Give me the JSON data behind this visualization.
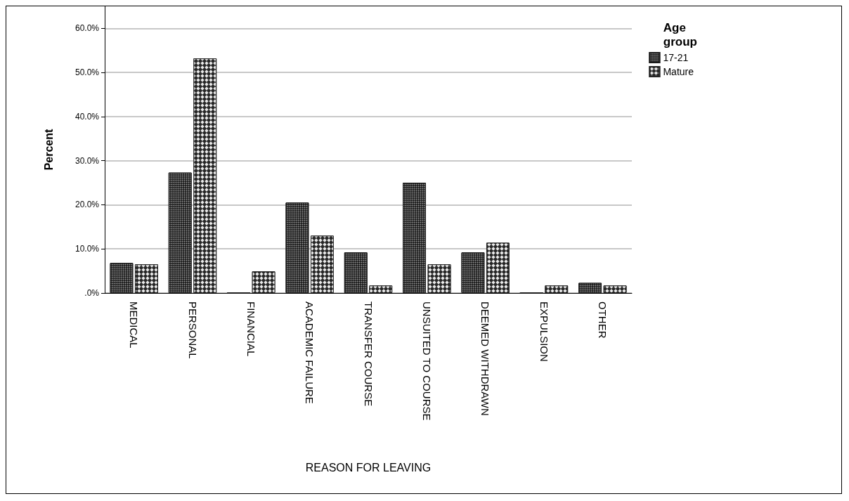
{
  "chart_data": {
    "type": "bar",
    "xlabel": "REASON FOR LEAVING",
    "ylabel": "Percent",
    "legend_title": "Age group",
    "categories": [
      "MEDICAL",
      "PERSONAL",
      "FINANCIAL",
      "ACADEMIC FAILURE",
      "TRANSFER COURSE",
      "UNSUITED TO COURSE",
      "DEEMED WITHDRAWN",
      "EXPULSION",
      "OTHER"
    ],
    "series": [
      {
        "name": "17-21",
        "color": "#1a1a1a",
        "values": [
          6.8,
          27.3,
          0,
          20.5,
          9.2,
          25.0,
          9.2,
          0,
          2.3
        ]
      },
      {
        "name": "Mature",
        "color": "#262626",
        "values": [
          6.5,
          53.2,
          4.9,
          13.0,
          1.7,
          6.5,
          11.4,
          1.7,
          1.7
        ]
      }
    ],
    "ylim": [
      0,
      65
    ],
    "yticks": [
      {
        "value": 0,
        "label": ".0%"
      },
      {
        "value": 10,
        "label": "10.0%"
      },
      {
        "value": 20,
        "label": "20.0%"
      },
      {
        "value": 30,
        "label": "30.0%"
      },
      {
        "value": 40,
        "label": "40.0%"
      },
      {
        "value": 50,
        "label": "50.0%"
      },
      {
        "value": 60,
        "label": "60.0%"
      }
    ],
    "grid": "y",
    "legend": "top right"
  }
}
